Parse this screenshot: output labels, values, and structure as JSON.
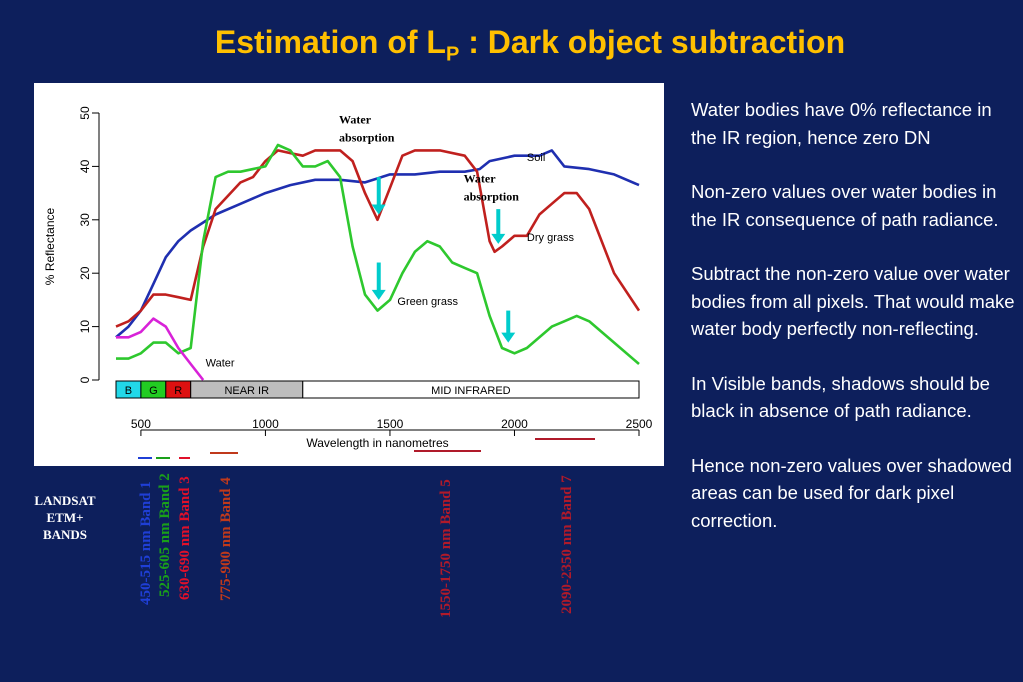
{
  "slide": {
    "title_main": "Estimation of L",
    "title_sub": "P",
    "title_rest": " : Dark object subtraction"
  },
  "notes": [
    "Water bodies have 0% reflectance in the IR region, hence zero DN",
    "Non-zero values over water bodies in the IR consequence of path radiance.",
    "Subtract the non-zero value over water bodies from all pixels.  That would make water body perfectly non-reflecting.",
    "In Visible bands, shadows should be black in absence of path radiance.",
    "Hence non-zero values over shadowed areas can be used for dark pixel correction."
  ],
  "landsat_label": [
    "LANDSAT",
    "ETM+",
    "BANDS"
  ],
  "bands": [
    {
      "label": "450-515 nm Band 1",
      "color": "#1f3fd6"
    },
    {
      "label": "525-605 nm Band 2",
      "color": "#1aa01a"
    },
    {
      "label": "630-690 nm Band 3",
      "color": "#e0102a"
    },
    {
      "label": "775-900 nm Band 4",
      "color": "#c0391b"
    },
    {
      "label": "1550-1750 nm Band 5",
      "color": "#b01a2a"
    },
    {
      "label": "2090-2350 nm Band 7",
      "color": "#b01a2a"
    }
  ],
  "chart_data": {
    "type": "line",
    "xlabel": "Wavelength in nanometres",
    "ylabel": "% Reflectance",
    "xlim": [
      400,
      2500
    ],
    "ylim": [
      0,
      50
    ],
    "xticks": [
      500,
      1000,
      1500,
      2000,
      2500
    ],
    "yticks": [
      0,
      10,
      20,
      30,
      40,
      50
    ],
    "series": [
      {
        "name": "Soil",
        "color": "#1f2fb0",
        "x": [
          400,
          450,
          500,
          550,
          600,
          650,
          700,
          750,
          800,
          900,
          1000,
          1100,
          1200,
          1300,
          1400,
          1500,
          1600,
          1700,
          1800,
          1860,
          1900,
          2000,
          2050,
          2100,
          2150,
          2200,
          2300,
          2400,
          2500
        ],
        "y": [
          8,
          10,
          13,
          18,
          23,
          26,
          28,
          29.5,
          31,
          33,
          35,
          36.5,
          37.5,
          37.5,
          37,
          38.5,
          38.5,
          39,
          39,
          39.5,
          41,
          42,
          42,
          42,
          43,
          40,
          39.5,
          38.5,
          36.5
        ]
      },
      {
        "name": "Dry grass",
        "color": "#c0201e",
        "x": [
          400,
          450,
          500,
          550,
          600,
          650,
          700,
          750,
          800,
          900,
          950,
          1000,
          1050,
          1100,
          1150,
          1200,
          1300,
          1350,
          1400,
          1450,
          1500,
          1550,
          1600,
          1700,
          1800,
          1850,
          1900,
          1920,
          1950,
          2000,
          2050,
          2100,
          2150,
          2200,
          2250,
          2300,
          2400,
          2500
        ],
        "y": [
          10,
          11,
          13,
          16,
          16,
          15.5,
          15,
          25,
          32,
          37,
          38,
          41,
          43,
          42.5,
          42,
          43,
          43,
          41,
          35,
          30,
          36,
          42,
          43,
          43,
          42,
          39,
          26,
          24,
          25,
          27,
          27,
          31,
          33,
          35,
          35,
          32,
          20,
          13
        ]
      },
      {
        "name": "Green grass",
        "color": "#2ec82e",
        "x": [
          400,
          450,
          500,
          550,
          600,
          650,
          700,
          750,
          800,
          850,
          900,
          1000,
          1050,
          1100,
          1150,
          1200,
          1250,
          1300,
          1350,
          1400,
          1450,
          1500,
          1550,
          1600,
          1650,
          1700,
          1750,
          1800,
          1850,
          1900,
          1950,
          2000,
          2050,
          2100,
          2150,
          2200,
          2250,
          2300,
          2400,
          2500
        ],
        "y": [
          4,
          4,
          5,
          7,
          7,
          5,
          6,
          26,
          38,
          39,
          39,
          40,
          44,
          43,
          40,
          40,
          41,
          38,
          25,
          16,
          13,
          15,
          20,
          24,
          26,
          25,
          22,
          21,
          20,
          12,
          6,
          5,
          6,
          8,
          10,
          11,
          12,
          11,
          7,
          3
        ]
      },
      {
        "name": "Water",
        "color": "#d822d8",
        "x": [
          400,
          450,
          500,
          550,
          600,
          650,
          700,
          750
        ],
        "y": [
          8,
          8,
          9,
          11.5,
          10,
          6,
          3,
          0
        ]
      }
    ],
    "annotations": [
      {
        "text": "Water absorption",
        "x": 1400,
        "y": 48
      },
      {
        "text": "Water absorption",
        "x": 1900,
        "y": 37
      },
      {
        "text": "Soil",
        "x": 2050,
        "y": 41
      },
      {
        "text": "Dry grass",
        "x": 2050,
        "y": 26
      },
      {
        "text": "Green grass",
        "x": 1530,
        "y": 14
      },
      {
        "text": "Water",
        "x": 760,
        "y": 2.5
      }
    ],
    "arrows": [
      {
        "x": 1455,
        "y_from": 38,
        "y_to": 31
      },
      {
        "x": 1455,
        "y_from": 22,
        "y_to": 15
      },
      {
        "x": 1935,
        "y_from": 32,
        "y_to": 25.5
      },
      {
        "x": 1975,
        "y_from": 13,
        "y_to": 7
      }
    ],
    "spectrum_bar": [
      {
        "label": "B",
        "from": 400,
        "to": 500,
        "color": "#22d8e8"
      },
      {
        "label": "G",
        "from": 500,
        "to": 600,
        "color": "#22cc22"
      },
      {
        "label": "R",
        "from": 600,
        "to": 700,
        "color": "#dd1111"
      },
      {
        "label": "NEAR IR",
        "from": 700,
        "to": 1150,
        "color": "#bdbdbd"
      },
      {
        "label": "MID INFRARED",
        "from": 1150,
        "to": 2500,
        "color": "#ffffff"
      }
    ]
  }
}
